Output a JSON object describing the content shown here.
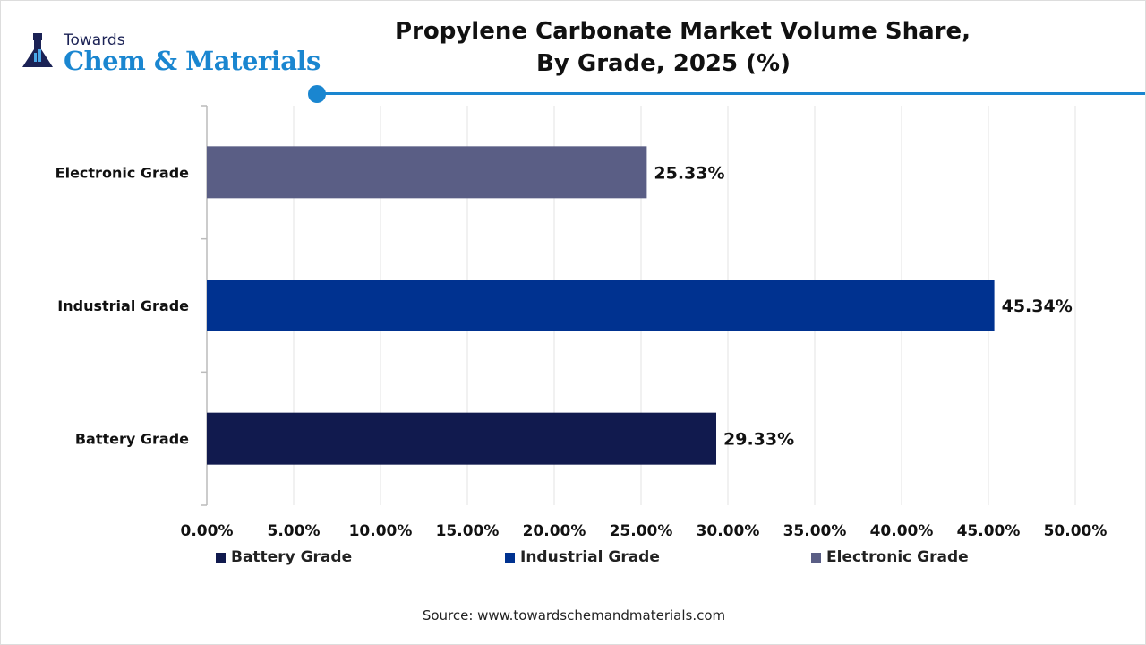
{
  "logo": {
    "line1": "Towards",
    "line2": "Chem & Materials"
  },
  "title_lines": [
    "Propylene Carbonate Market Volume Share,",
    "By Grade, 2025 (%)"
  ],
  "source": "Source: www.towardschemandmaterials.com",
  "chart_data": {
    "type": "bar",
    "orientation": "horizontal",
    "title": "Propylene Carbonate Market Volume Share, By Grade, 2025 (%)",
    "categories": [
      "Electronic Grade",
      "Industrial Grade",
      "Battery Grade"
    ],
    "values": [
      25.33,
      45.34,
      29.33
    ],
    "data_labels": [
      "25.33%",
      "45.34%",
      "29.33%"
    ],
    "colors": [
      "#5a5e85",
      "#003290",
      "#111a4e"
    ],
    "xlim": [
      0,
      50
    ],
    "x_ticks": [
      "0.00%",
      "5.00%",
      "10.00%",
      "15.00%",
      "20.00%",
      "25.00%",
      "30.00%",
      "35.00%",
      "40.00%",
      "45.00%",
      "50.00%"
    ],
    "grid": true,
    "legend_position": "bottom",
    "legend": [
      {
        "label": "Battery Grade",
        "color": "#111a4e"
      },
      {
        "label": "Industrial Grade",
        "color": "#003290"
      },
      {
        "label": "Electronic Grade",
        "color": "#5a5e85"
      }
    ]
  }
}
